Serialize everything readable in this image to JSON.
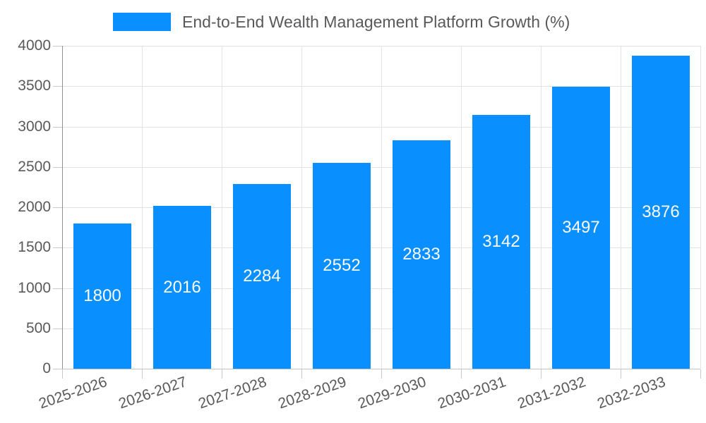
{
  "chart_data": {
    "type": "bar",
    "title": "",
    "series_name": "End-to-End Wealth Management Platform Growth (%)",
    "categories": [
      "2025-2026",
      "2026-2027",
      "2027-2028",
      "2028-2029",
      "2029-2030",
      "2030-2031",
      "2031-2032",
      "2032-2033"
    ],
    "values": [
      1800,
      2016,
      2284,
      2552,
      2833,
      3142,
      3497,
      3876
    ],
    "xlabel": "",
    "ylabel": "",
    "ylim": [
      0,
      4000
    ],
    "yticks": [
      0,
      500,
      1000,
      1500,
      2000,
      2500,
      3000,
      3500,
      4000
    ],
    "grid": true,
    "legend_position": "top",
    "value_labels": "inside-center"
  },
  "colors": {
    "bar": "#0A8FFF",
    "value_label": "#FCFCFC",
    "axis_text": "#58595B",
    "legend_text": "#58595B",
    "gridline": "#E3E3E3",
    "y_axis_line": "#8F8F8F",
    "x_axis_line": "#C4C4C4",
    "tick": "#C9C9C9",
    "background": "#FFFFFF"
  }
}
